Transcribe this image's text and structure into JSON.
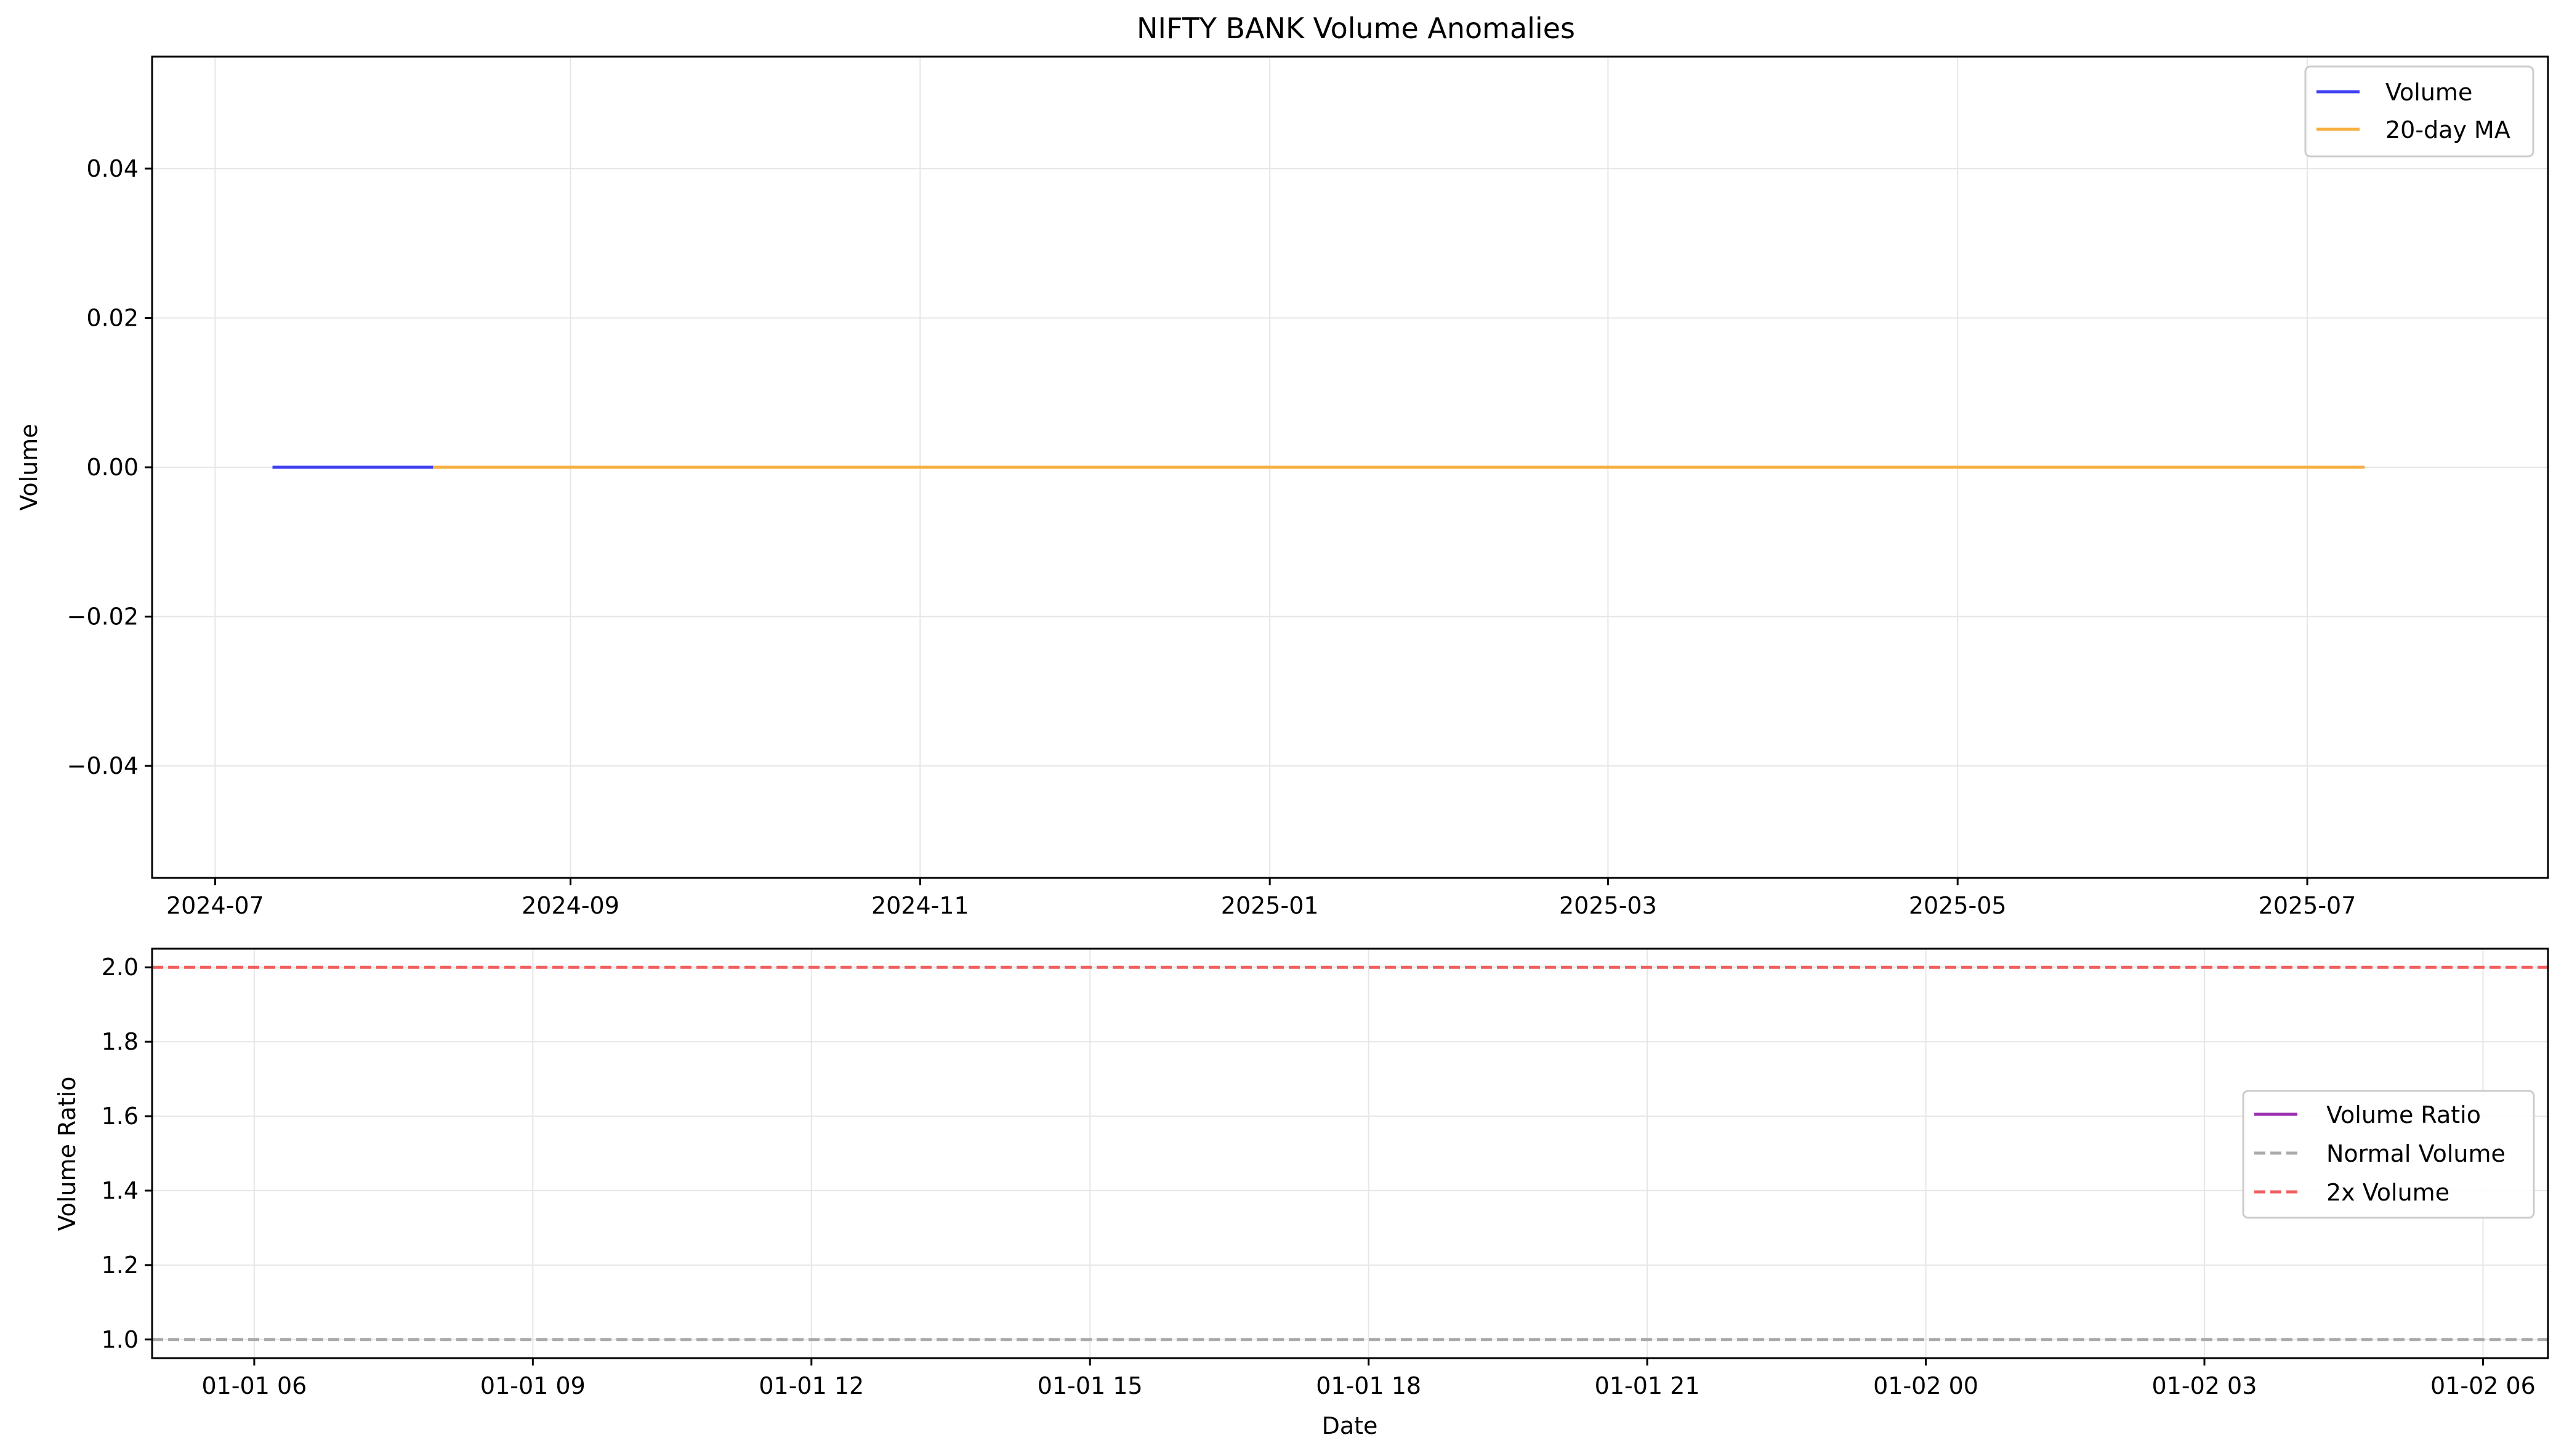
{
  "chart_data": [
    {
      "type": "line",
      "title": "NIFTY BANK Volume Anomalies",
      "xlabel": "",
      "ylabel": "Volume",
      "x_tick_labels": [
        "2024-07",
        "2024-09",
        "2024-11",
        "2025-01",
        "2025-03",
        "2025-05",
        "2025-07"
      ],
      "x_ticks": [
        "2024-07-01",
        "2024-09-01",
        "2024-11-01",
        "2025-01-01",
        "2025-03-01",
        "2025-05-01",
        "2025-07-01"
      ],
      "xlim": [
        "2024-06-20",
        "2025-08-12"
      ],
      "y_tick_labels": [
        "−0.04",
        "−0.02",
        "0.00",
        "0.02",
        "0.04"
      ],
      "y_ticks": [
        -0.04,
        -0.02,
        0.0,
        0.02,
        0.04
      ],
      "ylim": [
        -0.055,
        0.055
      ],
      "grid": true,
      "legend_position": "upper-right",
      "series": [
        {
          "name": "Volume",
          "color": "#4040f0",
          "style": "solid",
          "x": [
            "2024-07-11",
            "2025-07-11"
          ],
          "y": [
            0,
            0
          ]
        },
        {
          "name": "20-day MA",
          "color": "#f5b041",
          "style": "solid",
          "x": [
            "2024-08-08",
            "2025-07-11"
          ],
          "y": [
            0,
            0
          ]
        }
      ]
    },
    {
      "type": "line",
      "title": "",
      "xlabel": "Date",
      "ylabel": "Volume Ratio",
      "x_tick_labels": [
        "01-01 06",
        "01-01 09",
        "01-01 12",
        "01-01 15",
        "01-01 18",
        "01-01 21",
        "01-02 00",
        "01-02 03",
        "01-02 06"
      ],
      "x_ticks": [
        6,
        9,
        12,
        15,
        18,
        21,
        24,
        27,
        30
      ],
      "xlim": [
        4.9,
        30.7
      ],
      "y_tick_labels": [
        "1.0",
        "1.2",
        "1.4",
        "1.6",
        "1.8",
        "2.0"
      ],
      "y_ticks": [
        1.0,
        1.2,
        1.4,
        1.6,
        1.8,
        2.0
      ],
      "ylim": [
        0.95,
        2.05
      ],
      "grid": true,
      "legend_position": "center-right",
      "series": [
        {
          "name": "Volume Ratio",
          "color": "#9b30b0",
          "style": "solid",
          "x": [],
          "y": []
        },
        {
          "name": "Normal Volume",
          "color": "#aaaaaa",
          "style": "dashed",
          "hline": 1.0
        },
        {
          "name": "2x Volume",
          "color": "#f06060",
          "style": "dashed",
          "hline": 2.0
        }
      ]
    }
  ]
}
